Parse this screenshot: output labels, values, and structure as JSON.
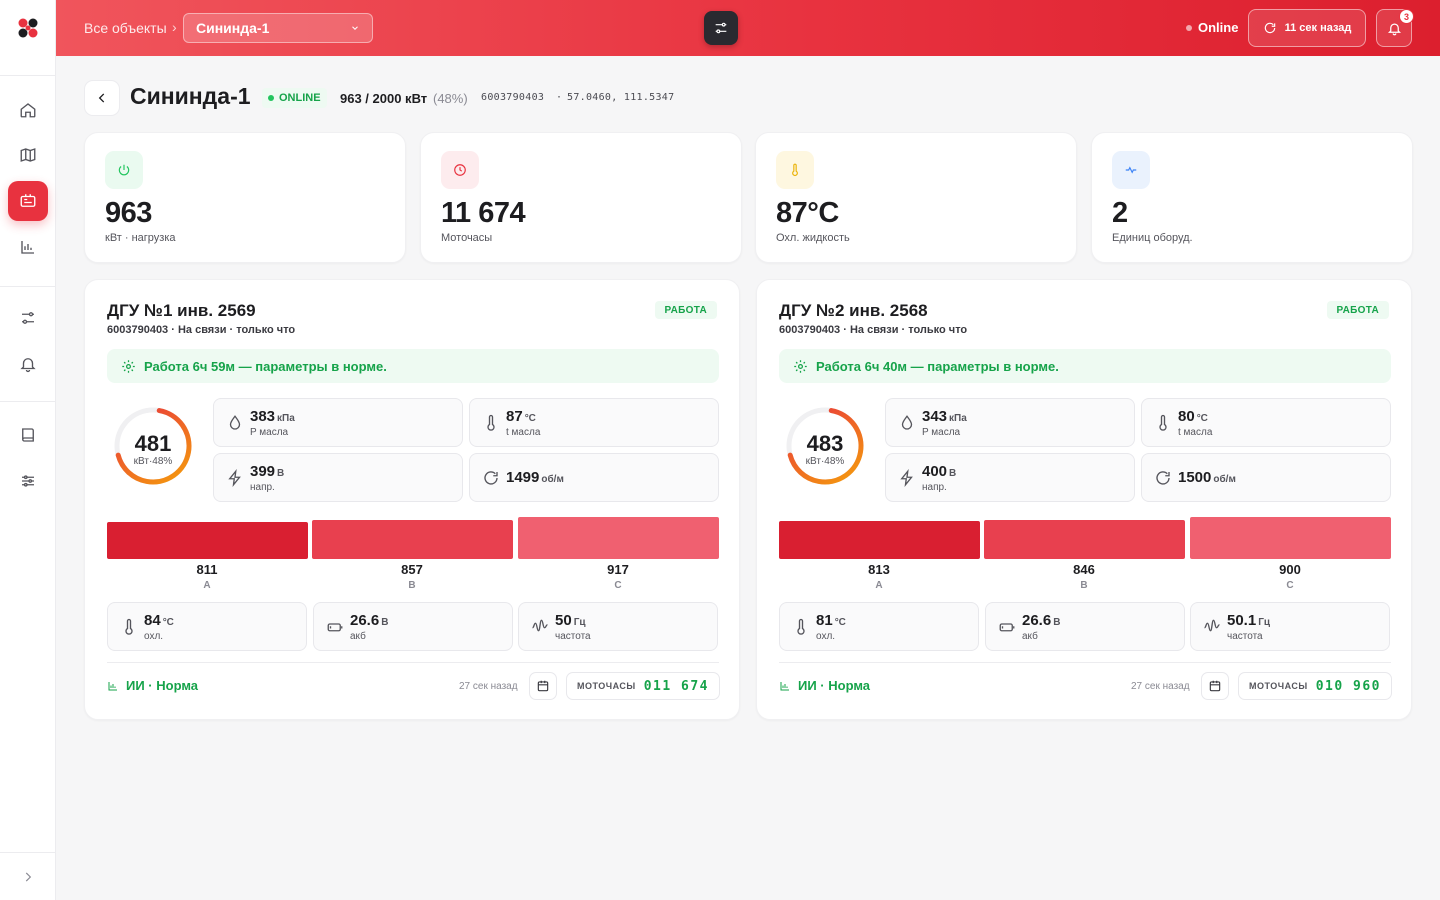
{
  "topbar": {
    "breadcrumb_root": "Все объекты",
    "breadcrumb_sep": "›",
    "selected_object": "Сининда-1",
    "status": "Online",
    "refresh_label": "11 сек назад",
    "notifications_count": "3"
  },
  "sidebar": {
    "items": [
      {
        "name": "home",
        "icon": "home-icon"
      },
      {
        "name": "map",
        "icon": "map-icon"
      },
      {
        "name": "objects",
        "icon": "generator-icon",
        "active": true
      },
      {
        "name": "analytics",
        "icon": "chart-icon"
      },
      {
        "name": "settings",
        "icon": "sliders-icon"
      },
      {
        "name": "alerts",
        "icon": "bell-icon"
      },
      {
        "name": "docs",
        "icon": "book-icon"
      },
      {
        "name": "config",
        "icon": "filters-icon"
      }
    ]
  },
  "header": {
    "title": "Сининда-1",
    "status": "ONLINE",
    "power": "963 / 2000 кВт",
    "power_pct": "(48%)",
    "serial": "6003790403",
    "coords_sep": "·",
    "coords": "57.0460, 111.5347"
  },
  "stats": [
    {
      "value": "963",
      "label": "кВт · нагрузка",
      "icon": "power-icon",
      "bg": "#eafaf0",
      "color": "#22c55e"
    },
    {
      "value": "11 674",
      "label": "Моточасы",
      "icon": "clock-icon",
      "bg": "#fdecee",
      "color": "#e8323f"
    },
    {
      "value": "87°C",
      "label": "Охл. жидкость",
      "icon": "thermometer-icon",
      "bg": "#fef7e0",
      "color": "#eab308"
    },
    {
      "value": "2",
      "label": "Единиц оборуд.",
      "icon": "pulse-icon",
      "bg": "#eaf2fd",
      "color": "#3b82f6"
    }
  ],
  "units": [
    {
      "title": "ДГУ №1 инв. 2569",
      "subtitle": "6003790403 · На связи · только что",
      "status": "РАБОТА",
      "banner": "Работа 6ч 59м — параметры в норме.",
      "load_value": "481",
      "load_label": "кВт·48%",
      "load_fraction": 0.48,
      "params": [
        {
          "value": "383",
          "unit": "кПа",
          "label": "P масла",
          "icon": "drop-icon"
        },
        {
          "value": "87",
          "unit": "°C",
          "label": "t масла",
          "icon": "thermometer-icon"
        },
        {
          "value": "399",
          "unit": "В",
          "label": "напр.",
          "icon": "bolt-icon"
        },
        {
          "value": "1499",
          "unit": "об/м",
          "label": "",
          "icon": "rotate-icon"
        }
      ],
      "phases": [
        {
          "value": "811",
          "name": "A"
        },
        {
          "value": "857",
          "name": "B"
        },
        {
          "value": "917",
          "name": "C"
        }
      ],
      "extra": [
        {
          "value": "84",
          "unit": "°C",
          "label": "охл.",
          "icon": "thermometer-icon"
        },
        {
          "value": "26.6",
          "unit": "В",
          "label": "акб",
          "icon": "battery-icon"
        },
        {
          "value": "50",
          "unit": "Гц",
          "label": "частота",
          "icon": "wave-icon"
        }
      ],
      "ai": "ИИ · Норма",
      "updated": "27 сек назад",
      "moto_label": "МОТОЧАСЫ",
      "moto_value": "011 674"
    },
    {
      "title": "ДГУ №2 инв. 2568",
      "subtitle": "6003790403 · На связи · только что",
      "status": "РАБОТА",
      "banner": "Работа 6ч 40м — параметры в норме.",
      "load_value": "483",
      "load_label": "кВт·48%",
      "load_fraction": 0.48,
      "params": [
        {
          "value": "343",
          "unit": "кПа",
          "label": "P масла",
          "icon": "drop-icon"
        },
        {
          "value": "80",
          "unit": "°C",
          "label": "t масла",
          "icon": "thermometer-icon"
        },
        {
          "value": "400",
          "unit": "В",
          "label": "напр.",
          "icon": "bolt-icon"
        },
        {
          "value": "1500",
          "unit": "об/м",
          "label": "",
          "icon": "rotate-icon"
        }
      ],
      "phases": [
        {
          "value": "813",
          "name": "A"
        },
        {
          "value": "846",
          "name": "B"
        },
        {
          "value": "900",
          "name": "C"
        }
      ],
      "extra": [
        {
          "value": "81",
          "unit": "°C",
          "label": "охл.",
          "icon": "thermometer-icon"
        },
        {
          "value": "26.6",
          "unit": "В",
          "label": "акб",
          "icon": "battery-icon"
        },
        {
          "value": "50.1",
          "unit": "Гц",
          "label": "частота",
          "icon": "wave-icon"
        }
      ],
      "ai": "ИИ · Норма",
      "updated": "27 сек назад",
      "moto_label": "МОТОЧАСЫ",
      "moto_value": "010 960"
    }
  ],
  "colors": {
    "accent": "#e8323f",
    "ok": "#16a34a",
    "phase_a": "#d91f31",
    "phase_b": "#e8404f",
    "phase_c": "#f06070"
  }
}
